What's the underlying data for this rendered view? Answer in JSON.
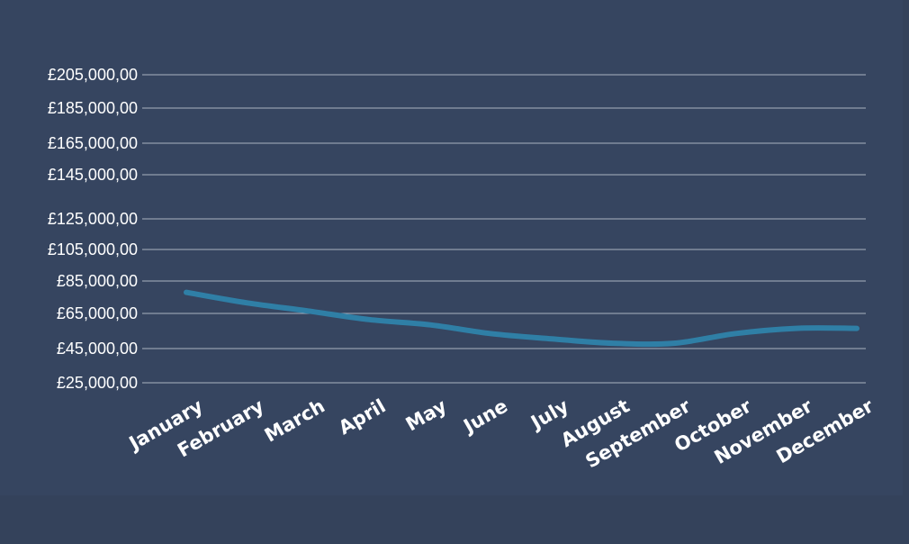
{
  "chart_data": {
    "type": "line",
    "categories": [
      "January",
      "February",
      "March",
      "April",
      "May",
      "June",
      "July",
      "August",
      "September",
      "October",
      "November",
      "December"
    ],
    "series": [
      {
        "values": [
          78000,
          71500,
          66500,
          61500,
          58500,
          53500,
          50500,
          48000,
          48000,
          53500,
          56500,
          56500
        ]
      }
    ],
    "yticks": [
      25000,
      45000,
      65000,
      85000,
      105000,
      125000,
      145000,
      165000,
      185000,
      205000
    ],
    "ytick_labels": [
      "£25,000,00",
      "£45,000,00",
      "£65,000,00",
      "£85,000,00",
      "£105,000,00",
      "£125,000,00",
      "£145,000,00",
      "£165,000,00",
      "£185,000,00",
      "£205,000,00"
    ],
    "ylim": [
      25000,
      205000
    ],
    "grid": true,
    "legend": "none",
    "colors": {
      "background": "#34425b",
      "panel": "#364560",
      "line": "#2f7fa6",
      "grid": "#c9ced8",
      "text": "#ffffff"
    }
  }
}
